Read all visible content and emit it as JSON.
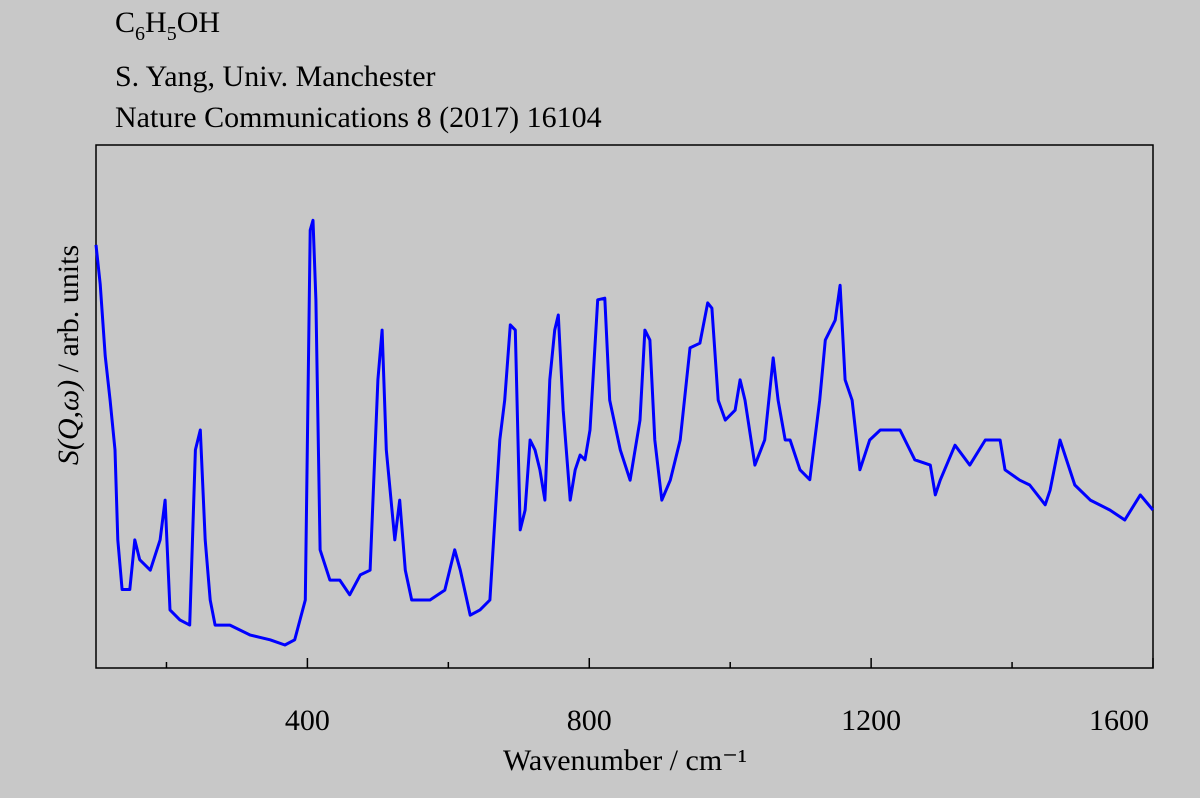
{
  "chart_data": {
    "type": "line",
    "title": "C6H5OH",
    "subtitles": [
      "S. Yang, Univ. Manchester",
      "Nature Communications 8 (2017) 16104"
    ],
    "x_label": "Wavenumber / cm⁻¹",
    "y_label": "S(Q,ω) / arb. units",
    "xlim": [
      100,
      1600
    ],
    "ylim": [
      0,
      100
    ],
    "xticks": [
      400,
      800,
      1200,
      1600
    ],
    "xminor_ticks": [
      200,
      600,
      1000,
      1400
    ],
    "grid": false,
    "x": [
      100,
      106,
      113,
      120,
      127,
      131,
      137,
      148,
      155,
      162,
      177,
      191,
      198,
      205,
      219,
      233,
      241,
      248,
      255,
      262,
      269,
      290,
      319,
      347,
      368,
      382,
      397,
      404,
      408,
      412,
      418,
      432,
      446,
      460,
      475,
      489,
      500,
      506,
      512,
      524,
      531,
      539,
      548,
      574,
      595,
      609,
      617,
      631,
      645,
      659,
      673,
      680,
      688,
      695,
      702,
      709,
      716,
      723,
      730,
      737,
      744,
      751,
      756,
      763,
      773,
      780,
      787,
      794,
      801,
      812,
      822,
      829,
      844,
      858,
      872,
      879,
      886,
      893,
      903,
      915,
      929,
      943,
      957,
      968,
      974,
      983,
      993,
      1007,
      1014,
      1021,
      1035,
      1049,
      1061,
      1068,
      1078,
      1085,
      1099,
      1113,
      1127,
      1135,
      1149,
      1156,
      1163,
      1173,
      1184,
      1198,
      1213,
      1241,
      1262,
      1284,
      1291,
      1298,
      1319,
      1340,
      1362,
      1383,
      1390,
      1411,
      1425,
      1447,
      1454,
      1468,
      1489,
      1511,
      1539,
      1560,
      1582,
      1600
    ],
    "series": [
      {
        "name": "C6H5OH",
        "color": "#0000ff",
        "values": [
          80.9,
          73.4,
          59.7,
          51.2,
          41.7,
          24.5,
          15.0,
          15.0,
          24.5,
          20.7,
          18.7,
          24.5,
          32.1,
          11.1,
          9.2,
          8.2,
          41.7,
          45.5,
          24.5,
          13.0,
          8.2,
          8.2,
          6.3,
          5.4,
          4.4,
          5.4,
          13.0,
          83.7,
          85.6,
          70.4,
          22.6,
          16.8,
          16.8,
          14.0,
          17.8,
          18.7,
          55.1,
          64.6,
          41.7,
          24.5,
          32.1,
          18.7,
          13.0,
          13.0,
          14.9,
          22.6,
          18.7,
          10.1,
          11.1,
          13.0,
          43.6,
          51.2,
          65.6,
          64.6,
          26.4,
          30.2,
          43.6,
          41.7,
          37.9,
          32.1,
          55.1,
          64.6,
          67.5,
          49.3,
          32.1,
          37.9,
          40.7,
          39.8,
          45.5,
          70.4,
          70.7,
          51.2,
          41.7,
          35.9,
          47.4,
          64.6,
          62.7,
          43.6,
          32.1,
          35.9,
          43.6,
          61.2,
          62.1,
          69.8,
          68.8,
          51.2,
          47.4,
          49.3,
          55.1,
          51.2,
          38.8,
          43.6,
          59.3,
          51.2,
          43.6,
          43.6,
          37.9,
          36.0,
          51.2,
          62.7,
          66.5,
          73.2,
          55.1,
          51.2,
          37.9,
          43.6,
          45.5,
          45.5,
          39.8,
          38.8,
          33.1,
          35.9,
          42.6,
          38.8,
          43.6,
          43.6,
          37.9,
          35.9,
          35.0,
          31.2,
          34.0,
          43.6,
          35.0,
          32.1,
          30.2,
          28.3,
          33.1,
          30.2
        ]
      }
    ]
  }
}
